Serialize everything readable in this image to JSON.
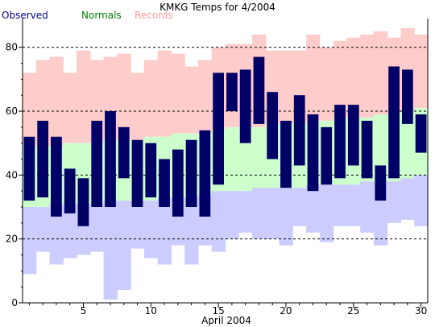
{
  "chart_data": {
    "type": "bar",
    "title": "KMKG Temps for 4/2004",
    "xlabel": "April 2004",
    "ylabel": "",
    "ylim": [
      0,
      89
    ],
    "xlim": [
      0.5,
      30.5
    ],
    "x_ticks": [
      5,
      10,
      15,
      20,
      25,
      30
    ],
    "y_ticks": [
      0,
      20,
      40,
      60,
      80
    ],
    "grid": "dashed horizontal at 20, 40, 60, 80",
    "legend": [
      "Observed",
      "Normals",
      "Records"
    ],
    "colors": {
      "observed": "#000066",
      "normals": "#ccffcc",
      "records": "#ffcccc",
      "normals_low": "#ccccff",
      "observed_legend": "#000080",
      "normals_legend": "#008000",
      "records_legend": "#ff9999"
    },
    "days": [
      1,
      2,
      3,
      4,
      5,
      6,
      7,
      8,
      9,
      10,
      11,
      12,
      13,
      14,
      15,
      16,
      17,
      18,
      19,
      20,
      21,
      22,
      23,
      24,
      25,
      26,
      27,
      28,
      29,
      30
    ],
    "series": [
      {
        "name": "Observed",
        "high": [
          52,
          57,
          52,
          42,
          39,
          57,
          60,
          55,
          51,
          50,
          45,
          48,
          51,
          54,
          72,
          72,
          73,
          77,
          66,
          57,
          65,
          59,
          55,
          62,
          62,
          57,
          43,
          74,
          73,
          59
        ],
        "low": [
          32,
          33,
          27,
          28,
          24,
          30,
          30,
          39,
          30,
          33,
          30,
          27,
          30,
          27,
          37,
          60,
          50,
          56,
          45,
          36,
          43,
          35,
          37,
          39,
          43,
          39,
          32,
          39,
          56,
          47
        ]
      },
      {
        "name": "Normals",
        "high": [
          49,
          49,
          49,
          50,
          50,
          50,
          51,
          51,
          51,
          52,
          52,
          53,
          53,
          53,
          54,
          55,
          55,
          55,
          56,
          56,
          56,
          57,
          57,
          58,
          58,
          58,
          59,
          59,
          60,
          61
        ],
        "low": [
          30,
          30,
          31,
          31,
          31,
          31,
          32,
          32,
          32,
          32,
          33,
          33,
          33,
          34,
          35,
          35,
          35,
          36,
          36,
          36,
          36,
          37,
          37,
          37,
          37,
          38,
          38,
          38,
          39,
          40
        ]
      },
      {
        "name": "Records",
        "high": [
          72,
          76,
          77,
          72,
          79,
          76,
          77,
          78,
          72,
          76,
          79,
          78,
          74,
          76,
          80,
          81,
          81,
          84,
          79,
          79,
          79,
          84,
          80,
          82,
          83,
          84,
          85,
          83,
          86,
          84
        ],
        "low": [
          9,
          16,
          12,
          14,
          15,
          16,
          1,
          4,
          17,
          14,
          12,
          18,
          12,
          18,
          16,
          20,
          22,
          20,
          20,
          18,
          24,
          22,
          19,
          24,
          24,
          22,
          18,
          25,
          26,
          24
        ]
      }
    ]
  }
}
